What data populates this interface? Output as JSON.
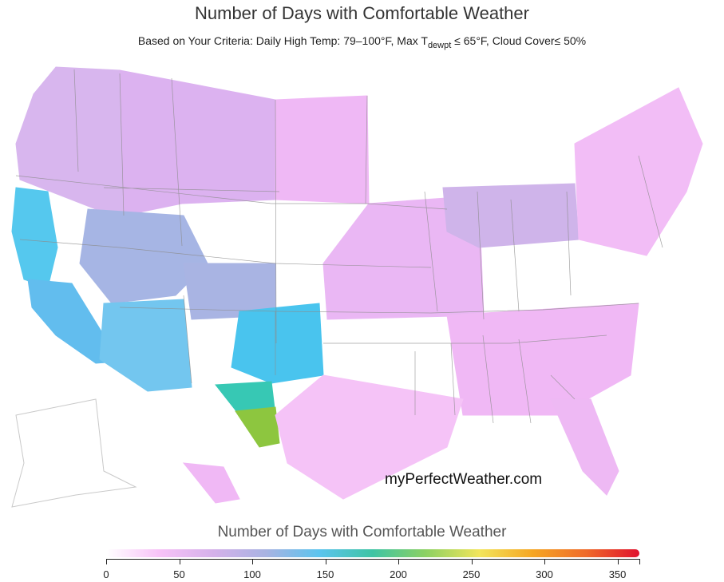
{
  "header": {
    "title": "Number of Days with Comfortable Weather",
    "subtitle_main": "Based on Your Criteria: Daily High Temp: 79–100°F, Max T",
    "subtitle_sub": "dewpt",
    "subtitle_rest": " ≤ 65°F, Cloud Cover≤ 50%"
  },
  "map": {
    "watermark": "myPerfectWeather.com",
    "regions": [
      {
        "name": "pacific-northwest",
        "days": 70,
        "color": "#d8b6ee"
      },
      {
        "name": "northern-rockies",
        "days": 65,
        "color": "#dcb2f0"
      },
      {
        "name": "northern-plains",
        "days": 55,
        "color": "#efb8f5"
      },
      {
        "name": "great-basin",
        "days": 110,
        "color": "#a6b5e4"
      },
      {
        "name": "california-coast",
        "days": 150,
        "color": "#55c8ee"
      },
      {
        "name": "southern-california",
        "days": 145,
        "color": "#62bdee"
      },
      {
        "name": "southwest-desert",
        "days": 150,
        "color": "#73c6ef"
      },
      {
        "name": "colorado-plateau",
        "days": 105,
        "color": "#a9b4e3"
      },
      {
        "name": "southern-plains",
        "days": 155,
        "color": "#49c4ee"
      },
      {
        "name": "west-texas",
        "days": 175,
        "color": "#37c8b4"
      },
      {
        "name": "big-bend",
        "days": 225,
        "color": "#8dc63f"
      },
      {
        "name": "midwest",
        "days": 55,
        "color": "#eab7f4"
      },
      {
        "name": "great-lakes",
        "days": 75,
        "color": "#cfb4ea"
      },
      {
        "name": "northeast",
        "days": 45,
        "color": "#f2bdf6"
      },
      {
        "name": "southeast",
        "days": 50,
        "color": "#f0b8f5"
      },
      {
        "name": "gulf-coast",
        "days": 40,
        "color": "#f5c3f7"
      },
      {
        "name": "florida",
        "days": 50,
        "color": "#eeb9f4"
      },
      {
        "name": "alaska",
        "days": 0,
        "color": "#ffffff"
      },
      {
        "name": "hawaii",
        "days": 50,
        "color": "#f0b8f5"
      }
    ]
  },
  "legend": {
    "title": "Number of Days with Comfortable Weather",
    "min": 0,
    "max": 365,
    "ticks": [
      "0",
      "50",
      "100",
      "150",
      "200",
      "250",
      "300",
      "350"
    ],
    "gradient": [
      "#ffffff",
      "#f7c2f7",
      "#d5b1ea",
      "#a8b3e2",
      "#5bc4ee",
      "#3ec4a4",
      "#8dd162",
      "#f2e55b",
      "#f5a623",
      "#ef6a2a",
      "#e0122e"
    ]
  }
}
